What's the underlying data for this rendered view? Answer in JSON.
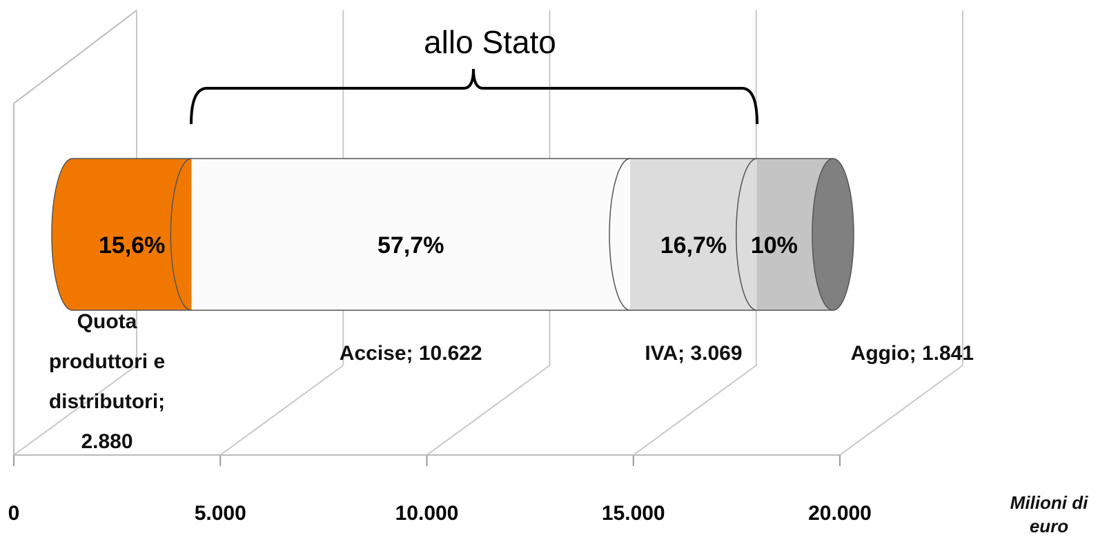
{
  "chart_data": {
    "type": "bar",
    "orientation": "horizontal",
    "stacked": true,
    "annotation": "allo Stato",
    "xlabel": "Milioni di euro",
    "series": [
      {
        "color": "#f07800",
        "values": [
          2880
        ],
        "value_labels": [
          "Quota produttori e distributori; 2.880"
        ],
        "shares": [
          15.6
        ],
        "share_labels": [
          "15,6%"
        ]
      },
      {
        "color": "#fbfbfb",
        "values": [
          10622
        ],
        "value_labels": [
          "Accise; 10.622"
        ],
        "shares": [
          57.7
        ],
        "share_labels": [
          "57,7%"
        ]
      },
      {
        "color": "#dcdcdc",
        "values": [
          3069
        ],
        "value_labels": [
          "IVA; 3.069"
        ],
        "shares": [
          16.7
        ],
        "share_labels": [
          "16,7%"
        ]
      },
      {
        "color": "#c4c4c4",
        "values": [
          1841
        ],
        "value_labels": [
          "Aggio; 1.841"
        ],
        "shares": [
          10
        ],
        "share_labels": [
          "10%"
        ]
      }
    ],
    "xlim": [
      0,
      20000
    ],
    "xticks": [
      0,
      {
        "value": 5000,
        "label": "5.000"
      },
      {
        "value": 10000,
        "label": "10.000"
      },
      {
        "value": 15000,
        "label": "15.000"
      },
      {
        "value": 20000,
        "label": "20.000"
      }
    ],
    "grid": true
  }
}
